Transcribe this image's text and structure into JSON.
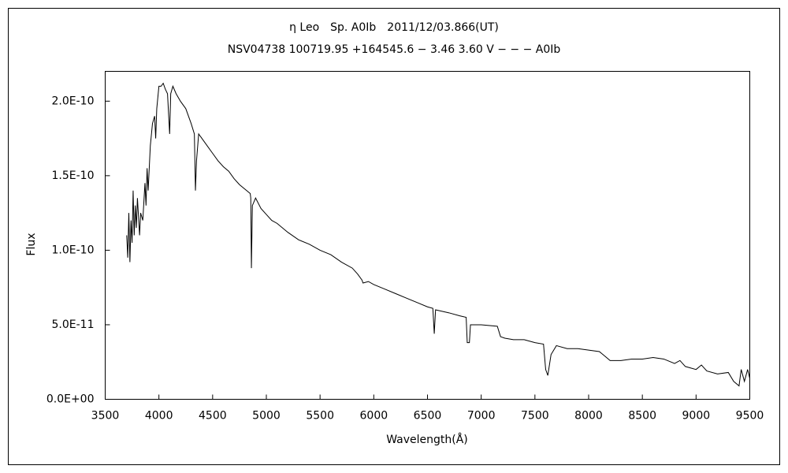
{
  "chart_data": {
    "type": "line",
    "title": "η Leo　Sp. A0Ib　2011/12/03.866(UT)",
    "subtitle": "NSV04738 100719.95 +164545.6 − 3.46 3.60 V − − − A0Ib",
    "x_label": "Wavelength(Å)",
    "y_label": "Flux",
    "x": [
      3700,
      3710,
      3720,
      3730,
      3740,
      3750,
      3760,
      3770,
      3780,
      3790,
      3800,
      3820,
      3830,
      3850,
      3870,
      3880,
      3890,
      3900,
      3920,
      3940,
      3960,
      3970,
      3980,
      4000,
      4020,
      4040,
      4060,
      4080,
      4100,
      4110,
      4130,
      4160,
      4200,
      4250,
      4300,
      4330,
      4340,
      4350,
      4370,
      4400,
      4450,
      4500,
      4550,
      4600,
      4650,
      4700,
      4750,
      4800,
      4850,
      4855,
      4861,
      4870,
      4900,
      4950,
      5000,
      5050,
      5100,
      5200,
      5300,
      5400,
      5500,
      5600,
      5700,
      5800,
      5850,
      5890,
      5900,
      5950,
      6000,
      6100,
      6200,
      6300,
      6400,
      6500,
      6550,
      6563,
      6575,
      6700,
      6800,
      6860,
      6870,
      6890,
      6900,
      7000,
      7150,
      7180,
      7220,
      7300,
      7400,
      7500,
      7580,
      7600,
      7620,
      7650,
      7700,
      7800,
      7900,
      8000,
      8100,
      8150,
      8200,
      8300,
      8400,
      8500,
      8600,
      8700,
      8800,
      8850,
      8900,
      9000,
      9050,
      9100,
      9200,
      9300,
      9350,
      9400,
      9420,
      9450,
      9480,
      9500
    ],
    "series": [
      {
        "color": "#000000",
        "values": [
          1.1e-10,
          9.5e-11,
          1.25e-10,
          9.2e-11,
          1.2e-10,
          1.05e-10,
          1.4e-10,
          1.1e-10,
          1.3e-10,
          1.15e-10,
          1.35e-10,
          1.1e-10,
          1.25e-10,
          1.2e-10,
          1.45e-10,
          1.3e-10,
          1.55e-10,
          1.4e-10,
          1.7e-10,
          1.85e-10,
          1.9e-10,
          1.75e-10,
          1.95e-10,
          2.1e-10,
          2.1e-10,
          2.12e-10,
          2.08e-10,
          2.05e-10,
          1.78e-10,
          2.05e-10,
          2.1e-10,
          2.05e-10,
          2e-10,
          1.95e-10,
          1.85e-10,
          1.78e-10,
          1.4e-10,
          1.6e-10,
          1.78e-10,
          1.75e-10,
          1.7e-10,
          1.65e-10,
          1.6e-10,
          1.56e-10,
          1.53e-10,
          1.48e-10,
          1.44e-10,
          1.41e-10,
          1.38e-10,
          1.35e-10,
          8.8e-11,
          1.3e-10,
          1.35e-10,
          1.28e-10,
          1.24e-10,
          1.2e-10,
          1.18e-10,
          1.12e-10,
          1.07e-10,
          1.04e-10,
          1e-10,
          9.7e-11,
          9.2e-11,
          8.8e-11,
          8.4e-11,
          8e-11,
          7.8e-11,
          7.9e-11,
          7.7e-11,
          7.4e-11,
          7.1e-11,
          6.8e-11,
          6.5e-11,
          6.2e-11,
          6.1e-11,
          4.4e-11,
          6e-11,
          5.8e-11,
          5.6e-11,
          5.5e-11,
          3.8e-11,
          3.8e-11,
          5e-11,
          5e-11,
          4.9e-11,
          4.2e-11,
          4.1e-11,
          4e-11,
          4e-11,
          3.8e-11,
          3.7e-11,
          2e-11,
          1.6e-11,
          3e-11,
          3.6e-11,
          3.4e-11,
          3.4e-11,
          3.3e-11,
          3.2e-11,
          2.9e-11,
          2.6e-11,
          2.6e-11,
          2.7e-11,
          2.7e-11,
          2.8e-11,
          2.7e-11,
          2.4e-11,
          2.6e-11,
          2.2e-11,
          2e-11,
          2.3e-11,
          1.9e-11,
          1.7e-11,
          1.8e-11,
          1.2e-11,
          9e-12,
          2e-11,
          1.2e-11,
          2e-11,
          1.4e-11
        ]
      }
    ],
    "xlim": [
      3500,
      9500
    ],
    "xticks": [
      3500,
      4000,
      4500,
      5000,
      5500,
      6000,
      6500,
      7000,
      7500,
      8000,
      8500,
      9000,
      9500
    ],
    "ylim": [
      0,
      2.2e-10
    ],
    "yticks": [
      {
        "value": 0,
        "label": "0.0E+00"
      },
      {
        "value": 5e-11,
        "label": "5.0E-11"
      },
      {
        "value": 1e-10,
        "label": "1.0E-10"
      },
      {
        "value": 1.5e-10,
        "label": "1.5E-10"
      },
      {
        "value": 2e-10,
        "label": "2.0E-10"
      }
    ],
    "grid": false
  }
}
